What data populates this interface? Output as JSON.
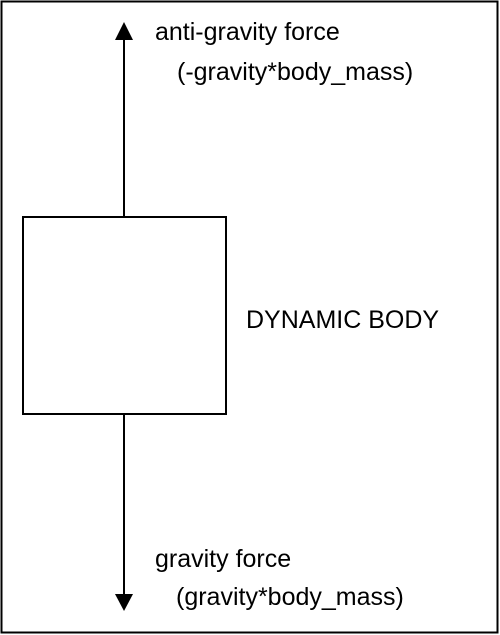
{
  "diagram": {
    "body_label": "DYNAMIC BODY",
    "forces": {
      "up": {
        "name": "anti-gravity force",
        "formula": "(-gravity*body_mass)"
      },
      "down": {
        "name": "gravity force",
        "formula": "(gravity*body_mass)"
      }
    },
    "colors": {
      "stroke": "#000000",
      "background": "#ffffff"
    }
  }
}
